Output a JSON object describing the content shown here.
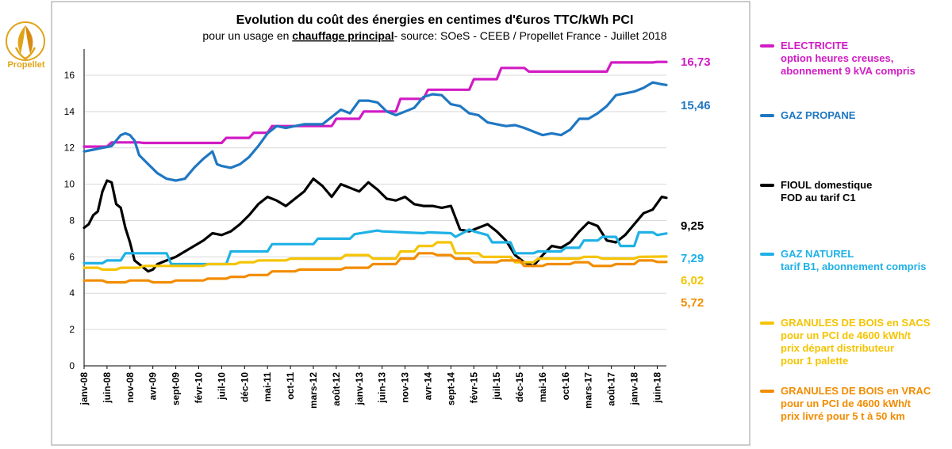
{
  "logo": {
    "name": "Propellet",
    "icon": "flame-leaf-logo-icon"
  },
  "chart_data": {
    "type": "line",
    "title": "Evolution du coût des énergies en centimes d'€uros TTC/kWh PCI",
    "subtitle_prefix": "pour un usage en ",
    "subtitle_underlined": "chauffage principal",
    "subtitle_suffix": "- source: SOeS - CEEB / Propellet France -  Juillet 2018",
    "xlabel": "",
    "ylabel": "",
    "ylim": [
      0,
      17
    ],
    "yticks": [
      0,
      2,
      4,
      6,
      8,
      10,
      12,
      14,
      16
    ],
    "grid": true,
    "x_tick_labels": [
      "janv-08",
      "juin-08",
      "nov-08",
      "avr-09",
      "sept-09",
      "févr-10",
      "juil-10",
      "déc-10",
      "mai-11",
      "oct-11",
      "mars-12",
      "août-12",
      "janv-13",
      "juin-13",
      "nov-13",
      "avr-14",
      "sept-14",
      "févr-15",
      "juil-15",
      "déc-15",
      "mai-16",
      "oct-16",
      "mars-17",
      "août-17",
      "janv-18",
      "juin-18"
    ],
    "x_tick_months": [
      0,
      5,
      10,
      15,
      20,
      25,
      30,
      35,
      40,
      45,
      50,
      55,
      60,
      65,
      70,
      75,
      80,
      85,
      90,
      95,
      100,
      105,
      110,
      115,
      120,
      125
    ],
    "months_span": [
      0,
      127
    ],
    "series": [
      {
        "name": "ELECTRICITE",
        "color": "#d11bc4",
        "end_label": "16,73",
        "x": [
          0,
          5,
          6,
          12,
          13,
          30,
          31,
          36,
          37,
          40,
          41,
          46,
          47,
          54,
          55,
          60,
          61,
          68,
          69,
          74,
          75,
          84,
          85,
          90,
          91,
          96,
          97,
          102,
          103,
          114,
          115,
          124,
          125,
          127
        ],
        "y": [
          12.07,
          12.07,
          12.3,
          12.3,
          12.27,
          12.27,
          12.55,
          12.55,
          12.83,
          12.83,
          13.2,
          13.2,
          13.2,
          13.2,
          13.6,
          13.6,
          14.0,
          14.0,
          14.7,
          14.7,
          15.2,
          15.2,
          15.78,
          15.78,
          16.4,
          16.4,
          16.2,
          16.2,
          16.2,
          16.2,
          16.7,
          16.7,
          16.73,
          16.73
        ]
      },
      {
        "name": "GAZ PROPANE",
        "color": "#1f77c2",
        "end_label": "15,46",
        "x": [
          0,
          2,
          4,
          6,
          8,
          9,
          10,
          11,
          12,
          14,
          16,
          18,
          20,
          22,
          24,
          26,
          28,
          29,
          30,
          32,
          34,
          36,
          38,
          40,
          42,
          44,
          46,
          48,
          50,
          52,
          54,
          56,
          58,
          60,
          62,
          64,
          66,
          68,
          70,
          72,
          74,
          76,
          78,
          80,
          82,
          84,
          86,
          88,
          90,
          92,
          94,
          96,
          98,
          100,
          102,
          104,
          106,
          108,
          110,
          112,
          114,
          116,
          118,
          120,
          122,
          124,
          126,
          127
        ],
        "y": [
          11.8,
          11.9,
          12.0,
          12.1,
          12.7,
          12.8,
          12.7,
          12.4,
          11.6,
          11.1,
          10.6,
          10.3,
          10.2,
          10.3,
          10.9,
          11.4,
          11.8,
          11.1,
          11.0,
          10.9,
          11.1,
          11.5,
          12.1,
          12.8,
          13.2,
          13.1,
          13.2,
          13.3,
          13.3,
          13.3,
          13.7,
          14.1,
          13.9,
          14.6,
          14.6,
          14.5,
          14.0,
          13.8,
          14.0,
          14.2,
          14.8,
          14.95,
          14.9,
          14.4,
          14.3,
          13.9,
          13.8,
          13.4,
          13.3,
          13.2,
          13.25,
          13.1,
          12.9,
          12.7,
          12.8,
          12.7,
          13.0,
          13.6,
          13.6,
          13.9,
          14.3,
          14.9,
          15.0,
          15.1,
          15.3,
          15.6,
          15.5,
          15.46
        ]
      },
      {
        "name": "FIOUL domestique",
        "color": "#000000",
        "end_label": "9,25",
        "x": [
          0,
          1,
          2,
          3,
          4,
          5,
          6,
          7,
          8,
          9,
          10,
          11,
          12,
          13,
          14,
          15,
          16,
          18,
          20,
          22,
          24,
          26,
          28,
          30,
          32,
          34,
          36,
          38,
          40,
          42,
          44,
          46,
          48,
          50,
          52,
          54,
          56,
          58,
          60,
          62,
          64,
          66,
          68,
          70,
          72,
          74,
          76,
          78,
          80,
          82,
          84,
          86,
          88,
          90,
          92,
          94,
          96,
          98,
          100,
          102,
          104,
          106,
          108,
          110,
          112,
          114,
          116,
          118,
          120,
          122,
          124,
          126,
          127
        ],
        "y": [
          7.6,
          7.8,
          8.3,
          8.5,
          9.6,
          10.2,
          10.1,
          8.9,
          8.7,
          7.6,
          6.8,
          5.8,
          5.6,
          5.4,
          5.2,
          5.3,
          5.6,
          5.8,
          6.0,
          6.3,
          6.6,
          6.9,
          7.3,
          7.2,
          7.4,
          7.8,
          8.3,
          8.9,
          9.3,
          9.1,
          8.8,
          9.2,
          9.6,
          10.3,
          9.9,
          9.3,
          10.0,
          9.8,
          9.6,
          10.1,
          9.7,
          9.2,
          9.1,
          9.3,
          8.9,
          8.8,
          8.8,
          8.7,
          8.8,
          7.5,
          7.4,
          7.6,
          7.8,
          7.4,
          6.9,
          6.1,
          5.7,
          5.5,
          6.1,
          6.6,
          6.5,
          6.8,
          7.4,
          7.9,
          7.7,
          6.9,
          6.8,
          7.2,
          7.8,
          8.4,
          8.6,
          9.3,
          9.25
        ]
      },
      {
        "name": "GAZ NATUREL",
        "color": "#1fb1e6",
        "end_label": "7,29",
        "x": [
          0,
          4,
          5,
          8,
          9,
          18,
          19,
          31,
          32,
          40,
          41,
          50,
          51,
          58,
          59,
          64,
          65,
          74,
          75,
          80,
          81,
          84,
          85,
          88,
          89,
          93,
          94,
          98,
          99,
          104,
          105,
          108,
          109,
          112,
          113,
          116,
          117,
          120,
          121,
          124,
          125,
          127
        ],
        "y": [
          5.65,
          5.65,
          5.8,
          5.8,
          6.2,
          6.2,
          5.6,
          5.6,
          6.3,
          6.3,
          6.7,
          6.7,
          7.0,
          7.0,
          7.25,
          7.45,
          7.4,
          7.3,
          7.35,
          7.3,
          7.1,
          7.5,
          7.4,
          7.2,
          6.8,
          6.8,
          6.2,
          6.2,
          6.3,
          6.3,
          6.5,
          6.5,
          6.9,
          6.9,
          7.1,
          7.1,
          6.6,
          6.6,
          7.35,
          7.35,
          7.2,
          7.29
        ]
      },
      {
        "name": "GRANULES DE BOIS en SACS",
        "color": "#f5c400",
        "end_label": "6,02",
        "x": [
          0,
          3,
          4,
          7,
          8,
          12,
          13,
          26,
          27,
          33,
          34,
          37,
          38,
          44,
          45,
          56,
          57,
          62,
          63,
          68,
          69,
          72,
          73,
          76,
          77,
          80,
          81,
          86,
          87,
          93,
          94,
          98,
          99,
          104,
          105,
          108,
          109,
          112,
          113,
          116,
          117,
          120,
          121,
          127
        ],
        "y": [
          5.4,
          5.4,
          5.3,
          5.3,
          5.4,
          5.4,
          5.5,
          5.5,
          5.6,
          5.6,
          5.7,
          5.7,
          5.8,
          5.8,
          5.9,
          5.9,
          6.1,
          6.1,
          5.9,
          5.9,
          6.3,
          6.3,
          6.6,
          6.6,
          6.8,
          6.8,
          6.2,
          6.2,
          6.0,
          6.0,
          5.7,
          5.7,
          5.9,
          5.9,
          5.9,
          5.9,
          6.0,
          6.0,
          5.9,
          5.9,
          5.9,
          5.9,
          6.0,
          6.02
        ]
      },
      {
        "name": "GRANULES DE BOIS en VRAC",
        "color": "#f28c00",
        "end_label": "5,72",
        "x": [
          0,
          4,
          5,
          9,
          10,
          14,
          15,
          19,
          20,
          26,
          27,
          31,
          32,
          35,
          36,
          40,
          41,
          46,
          47,
          56,
          57,
          62,
          63,
          68,
          69,
          72,
          73,
          76,
          77,
          80,
          81,
          84,
          85,
          90,
          91,
          95,
          96,
          100,
          101,
          106,
          107,
          110,
          111,
          115,
          116,
          120,
          121,
          124,
          125,
          127
        ],
        "y": [
          4.7,
          4.7,
          4.6,
          4.6,
          4.7,
          4.7,
          4.6,
          4.6,
          4.7,
          4.7,
          4.8,
          4.8,
          4.9,
          4.9,
          5.0,
          5.0,
          5.2,
          5.2,
          5.3,
          5.3,
          5.4,
          5.4,
          5.6,
          5.6,
          5.9,
          5.9,
          6.2,
          6.2,
          6.1,
          6.1,
          5.9,
          5.9,
          5.7,
          5.7,
          5.8,
          5.8,
          5.5,
          5.5,
          5.6,
          5.6,
          5.7,
          5.7,
          5.5,
          5.5,
          5.6,
          5.6,
          5.8,
          5.8,
          5.72,
          5.72
        ]
      }
    ]
  },
  "legend": [
    {
      "color": "#d11bc4",
      "lines": [
        "ELECTRICITE",
        "option heures creuses,",
        "abonnement 9 kVA compris"
      ]
    },
    {
      "color": "#1f77c2",
      "lines": [
        "GAZ PROPANE"
      ]
    },
    {
      "color": "#000000",
      "lines": [
        "FIOUL domestique",
        "FOD au tarif C1"
      ]
    },
    {
      "color": "#1fb1e6",
      "lines": [
        "GAZ NATUREL",
        "tarif B1, abonnement compris"
      ]
    },
    {
      "color": "#f5c400",
      "lines": [
        "GRANULES DE BOIS en SACS",
        "pour un PCI de 4600 kWh/t",
        "prix départ distributeur",
        "pour 1 palette"
      ]
    },
    {
      "color": "#f28c00",
      "lines": [
        "GRANULES DE BOIS en VRAC",
        "pour un PCI de 4600 kWh/t",
        "prix livré pour 5 t à 50 km"
      ]
    }
  ]
}
